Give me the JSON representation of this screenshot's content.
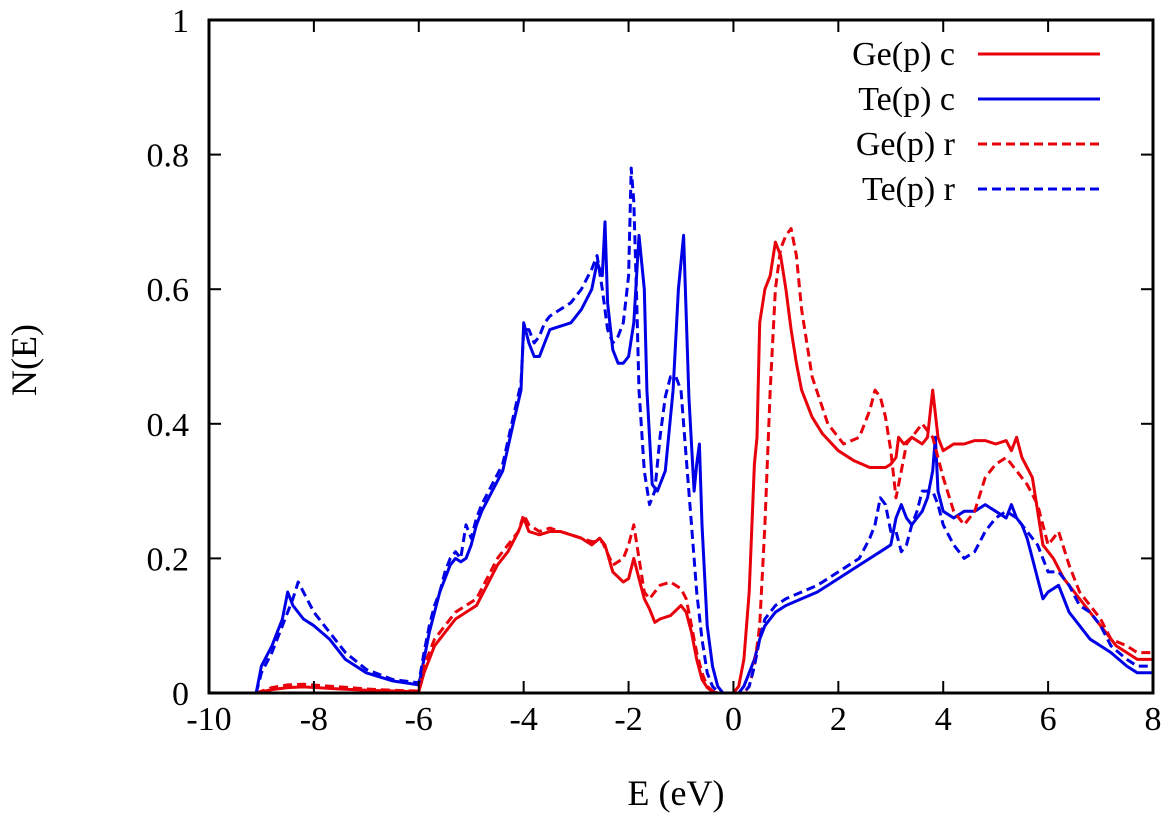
{
  "chart_data": {
    "type": "line",
    "title": "",
    "xlabel": "E (eV)",
    "ylabel": "N(E)",
    "xlim": [
      -10,
      8
    ],
    "ylim": [
      0,
      1
    ],
    "xticks": [
      -10,
      -8,
      -6,
      -4,
      -2,
      0,
      2,
      4,
      6,
      8
    ],
    "yticks": [
      0,
      0.2,
      0.4,
      0.6,
      0.8,
      1
    ],
    "xtick_labels": [
      "-10",
      "-8",
      "-6",
      "-4",
      "-2",
      "0",
      "2",
      "4",
      "6",
      "8"
    ],
    "ytick_labels": [
      "0",
      "0.2",
      "0.4",
      "0.6",
      "0.8",
      "1"
    ],
    "grid": false,
    "legend_position": "top-right",
    "series": [
      {
        "name": "Ge(p) c",
        "color": "#e8000b",
        "dash": "solid",
        "x": [
          -9.1,
          -8.8,
          -8.5,
          -8.2,
          -7.5,
          -7.0,
          -6.5,
          -6.0,
          -5.9,
          -5.7,
          -5.5,
          -5.3,
          -5.1,
          -4.9,
          -4.7,
          -4.5,
          -4.3,
          -4.1,
          -4.0,
          -3.9,
          -3.7,
          -3.5,
          -3.3,
          -3.1,
          -2.9,
          -2.7,
          -2.55,
          -2.45,
          -2.3,
          -2.1,
          -2.0,
          -1.9,
          -1.8,
          -1.7,
          -1.6,
          -1.5,
          -1.4,
          -1.2,
          -1.0,
          -0.9,
          -0.8,
          -0.7,
          -0.6,
          -0.5,
          -0.4,
          -0.3,
          -0.2,
          -0.1,
          0.0,
          0.1,
          0.2,
          0.3,
          0.4,
          0.45,
          0.5,
          0.6,
          0.7,
          0.8,
          0.9,
          1.0,
          1.1,
          1.2,
          1.3,
          1.5,
          1.7,
          2.0,
          2.3,
          2.6,
          2.9,
          3.0,
          3.1,
          3.15,
          3.25,
          3.4,
          3.6,
          3.7,
          3.8,
          3.9,
          4.0,
          4.2,
          4.4,
          4.6,
          4.8,
          5.0,
          5.2,
          5.3,
          5.4,
          5.5,
          5.7,
          5.9,
          6.1,
          6.3,
          6.5,
          6.7,
          6.9,
          7.1,
          7.3,
          7.5,
          7.7,
          8.0
        ],
        "y": [
          0.0,
          0.005,
          0.008,
          0.009,
          0.006,
          0.004,
          0.003,
          0.002,
          0.03,
          0.07,
          0.09,
          0.11,
          0.12,
          0.13,
          0.16,
          0.19,
          0.21,
          0.24,
          0.26,
          0.24,
          0.235,
          0.24,
          0.24,
          0.235,
          0.23,
          0.22,
          0.23,
          0.22,
          0.18,
          0.165,
          0.17,
          0.2,
          0.17,
          0.14,
          0.125,
          0.105,
          0.11,
          0.115,
          0.13,
          0.12,
          0.09,
          0.05,
          0.02,
          0.008,
          0.002,
          0.0,
          0.0,
          0.0,
          0.0,
          0.01,
          0.05,
          0.15,
          0.34,
          0.38,
          0.55,
          0.6,
          0.62,
          0.67,
          0.65,
          0.6,
          0.54,
          0.49,
          0.45,
          0.41,
          0.385,
          0.36,
          0.345,
          0.335,
          0.335,
          0.34,
          0.35,
          0.38,
          0.37,
          0.38,
          0.37,
          0.38,
          0.45,
          0.38,
          0.36,
          0.37,
          0.37,
          0.375,
          0.375,
          0.37,
          0.375,
          0.36,
          0.38,
          0.35,
          0.32,
          0.22,
          0.2,
          0.17,
          0.15,
          0.13,
          0.11,
          0.09,
          0.07,
          0.06,
          0.05,
          0.05
        ]
      },
      {
        "name": "Te(p) c",
        "color": "#0000e6",
        "dash": "solid",
        "x": [
          -9.1,
          -9.0,
          -8.8,
          -8.6,
          -8.5,
          -8.4,
          -8.2,
          -8.0,
          -7.7,
          -7.4,
          -7.0,
          -6.5,
          -6.0,
          -5.9,
          -5.8,
          -5.7,
          -5.6,
          -5.5,
          -5.4,
          -5.3,
          -5.2,
          -5.1,
          -5.0,
          -4.9,
          -4.8,
          -4.6,
          -4.4,
          -4.2,
          -4.05,
          -4.0,
          -3.9,
          -3.8,
          -3.7,
          -3.6,
          -3.5,
          -3.3,
          -3.1,
          -2.9,
          -2.7,
          -2.6,
          -2.5,
          -2.45,
          -2.4,
          -2.3,
          -2.2,
          -2.1,
          -2.0,
          -1.9,
          -1.8,
          -1.7,
          -1.65,
          -1.55,
          -1.45,
          -1.3,
          -1.15,
          -1.05,
          -0.95,
          -0.85,
          -0.75,
          -0.7,
          -0.65,
          -0.6,
          -0.5,
          -0.4,
          -0.3,
          -0.2,
          -0.1,
          0.0,
          0.1,
          0.2,
          0.3,
          0.4,
          0.5,
          0.6,
          0.8,
          1.0,
          1.3,
          1.6,
          2.0,
          2.4,
          2.8,
          3.0,
          3.1,
          3.2,
          3.3,
          3.4,
          3.5,
          3.6,
          3.7,
          3.8,
          3.85,
          3.9,
          4.0,
          4.2,
          4.4,
          4.6,
          4.8,
          5.0,
          5.2,
          5.3,
          5.4,
          5.5,
          5.6,
          5.7,
          5.8,
          5.9,
          6.0,
          6.2,
          6.4,
          6.6,
          6.8,
          7.0,
          7.2,
          7.5,
          7.7,
          8.0
        ],
        "y": [
          0.0,
          0.04,
          0.07,
          0.11,
          0.15,
          0.13,
          0.11,
          0.1,
          0.08,
          0.05,
          0.03,
          0.018,
          0.012,
          0.05,
          0.09,
          0.12,
          0.15,
          0.17,
          0.19,
          0.2,
          0.195,
          0.2,
          0.22,
          0.25,
          0.27,
          0.3,
          0.33,
          0.4,
          0.45,
          0.55,
          0.52,
          0.5,
          0.5,
          0.52,
          0.54,
          0.545,
          0.55,
          0.57,
          0.6,
          0.64,
          0.62,
          0.7,
          0.58,
          0.51,
          0.49,
          0.49,
          0.5,
          0.55,
          0.68,
          0.6,
          0.45,
          0.31,
          0.3,
          0.33,
          0.45,
          0.6,
          0.68,
          0.44,
          0.3,
          0.34,
          0.37,
          0.25,
          0.1,
          0.04,
          0.01,
          0.0,
          0.0,
          0.0,
          0.0,
          0.01,
          0.03,
          0.05,
          0.08,
          0.1,
          0.12,
          0.13,
          0.14,
          0.15,
          0.17,
          0.19,
          0.21,
          0.22,
          0.26,
          0.28,
          0.26,
          0.25,
          0.26,
          0.27,
          0.29,
          0.33,
          0.38,
          0.3,
          0.27,
          0.26,
          0.27,
          0.27,
          0.28,
          0.27,
          0.26,
          0.28,
          0.26,
          0.25,
          0.23,
          0.2,
          0.17,
          0.14,
          0.15,
          0.16,
          0.12,
          0.1,
          0.08,
          0.07,
          0.06,
          0.04,
          0.03,
          0.03
        ]
      },
      {
        "name": "Ge(p) r",
        "color": "#e8000b",
        "dash": "dashed",
        "x": [
          -9.1,
          -8.8,
          -8.5,
          -8.2,
          -7.5,
          -7.0,
          -6.5,
          -6.0,
          -5.9,
          -5.7,
          -5.5,
          -5.3,
          -5.1,
          -4.9,
          -4.7,
          -4.5,
          -4.3,
          -4.1,
          -4.0,
          -3.9,
          -3.7,
          -3.5,
          -3.3,
          -3.1,
          -2.9,
          -2.7,
          -2.5,
          -2.3,
          -2.1,
          -2.0,
          -1.9,
          -1.8,
          -1.7,
          -1.6,
          -1.5,
          -1.4,
          -1.2,
          -1.0,
          -0.9,
          -0.8,
          -0.7,
          -0.6,
          -0.5,
          -0.4,
          -0.3,
          -0.2,
          -0.1,
          0.0,
          0.1,
          0.2,
          0.3,
          0.4,
          0.5,
          0.6,
          0.7,
          0.8,
          0.9,
          1.0,
          1.1,
          1.2,
          1.3,
          1.5,
          1.8,
          2.1,
          2.4,
          2.6,
          2.7,
          2.8,
          2.9,
          3.0,
          3.1,
          3.2,
          3.3,
          3.4,
          3.6,
          3.8,
          4.0,
          4.2,
          4.4,
          4.6,
          4.8,
          5.0,
          5.2,
          5.4,
          5.6,
          5.8,
          6.0,
          6.2,
          6.4,
          6.6,
          6.8,
          7.0,
          7.2,
          7.5,
          7.7,
          8.0
        ],
        "y": [
          0.0,
          0.008,
          0.012,
          0.013,
          0.009,
          0.006,
          0.004,
          0.003,
          0.04,
          0.08,
          0.1,
          0.12,
          0.13,
          0.14,
          0.17,
          0.2,
          0.22,
          0.24,
          0.265,
          0.25,
          0.24,
          0.245,
          0.24,
          0.235,
          0.23,
          0.225,
          0.225,
          0.19,
          0.2,
          0.22,
          0.25,
          0.2,
          0.15,
          0.14,
          0.15,
          0.16,
          0.165,
          0.155,
          0.14,
          0.1,
          0.06,
          0.03,
          0.01,
          0.003,
          0.0,
          0.0,
          0.0,
          0.0,
          0.0,
          0.0,
          0.01,
          0.04,
          0.1,
          0.25,
          0.45,
          0.6,
          0.66,
          0.68,
          0.69,
          0.65,
          0.57,
          0.47,
          0.4,
          0.37,
          0.38,
          0.42,
          0.45,
          0.44,
          0.41,
          0.36,
          0.29,
          0.33,
          0.37,
          0.38,
          0.4,
          0.38,
          0.32,
          0.27,
          0.25,
          0.27,
          0.32,
          0.34,
          0.35,
          0.33,
          0.31,
          0.28,
          0.22,
          0.24,
          0.19,
          0.15,
          0.13,
          0.11,
          0.08,
          0.07,
          0.06,
          0.06
        ]
      },
      {
        "name": "Te(p) r",
        "color": "#0000e6",
        "dash": "dashed",
        "x": [
          -9.1,
          -9.0,
          -8.8,
          -8.6,
          -8.4,
          -8.3,
          -8.2,
          -8.0,
          -7.7,
          -7.4,
          -7.0,
          -6.5,
          -6.0,
          -5.9,
          -5.8,
          -5.7,
          -5.6,
          -5.5,
          -5.4,
          -5.3,
          -5.2,
          -5.1,
          -5.0,
          -4.9,
          -4.8,
          -4.6,
          -4.4,
          -4.2,
          -4.05,
          -4.0,
          -3.9,
          -3.8,
          -3.7,
          -3.6,
          -3.5,
          -3.3,
          -3.1,
          -2.9,
          -2.7,
          -2.6,
          -2.5,
          -2.4,
          -2.3,
          -2.2,
          -2.1,
          -2.0,
          -1.95,
          -1.9,
          -1.85,
          -1.8,
          -1.7,
          -1.6,
          -1.5,
          -1.4,
          -1.3,
          -1.2,
          -1.1,
          -1.0,
          -0.9,
          -0.8,
          -0.7,
          -0.6,
          -0.5,
          -0.4,
          -0.3,
          -0.2,
          -0.1,
          0.0,
          0.1,
          0.2,
          0.3,
          0.4,
          0.5,
          0.6,
          0.8,
          1.0,
          1.3,
          1.6,
          2.0,
          2.4,
          2.6,
          2.7,
          2.8,
          2.9,
          3.0,
          3.1,
          3.2,
          3.3,
          3.4,
          3.5,
          3.6,
          3.7,
          3.8,
          3.9,
          4.0,
          4.2,
          4.4,
          4.6,
          4.8,
          5.0,
          5.2,
          5.4,
          5.6,
          5.8,
          6.0,
          6.2,
          6.4,
          6.6,
          6.8,
          7.0,
          7.2,
          7.5,
          7.7,
          8.0
        ],
        "y": [
          0.0,
          0.03,
          0.06,
          0.1,
          0.14,
          0.165,
          0.15,
          0.12,
          0.09,
          0.06,
          0.035,
          0.02,
          0.015,
          0.06,
          0.1,
          0.13,
          0.15,
          0.18,
          0.2,
          0.21,
          0.2,
          0.25,
          0.23,
          0.26,
          0.28,
          0.31,
          0.34,
          0.41,
          0.46,
          0.54,
          0.54,
          0.52,
          0.53,
          0.55,
          0.56,
          0.57,
          0.58,
          0.6,
          0.63,
          0.65,
          0.6,
          0.54,
          0.52,
          0.53,
          0.55,
          0.62,
          0.78,
          0.73,
          0.6,
          0.45,
          0.33,
          0.28,
          0.3,
          0.38,
          0.44,
          0.47,
          0.47,
          0.45,
          0.35,
          0.25,
          0.15,
          0.08,
          0.03,
          0.01,
          0.002,
          0.0,
          0.0,
          0.0,
          0.0,
          0.0,
          0.01,
          0.04,
          0.08,
          0.11,
          0.13,
          0.14,
          0.15,
          0.16,
          0.18,
          0.2,
          0.23,
          0.25,
          0.29,
          0.28,
          0.24,
          0.24,
          0.21,
          0.22,
          0.25,
          0.27,
          0.3,
          0.3,
          0.3,
          0.28,
          0.25,
          0.22,
          0.2,
          0.21,
          0.24,
          0.26,
          0.27,
          0.26,
          0.24,
          0.22,
          0.18,
          0.18,
          0.16,
          0.13,
          0.12,
          0.1,
          0.07,
          0.05,
          0.04,
          0.04
        ]
      }
    ]
  }
}
